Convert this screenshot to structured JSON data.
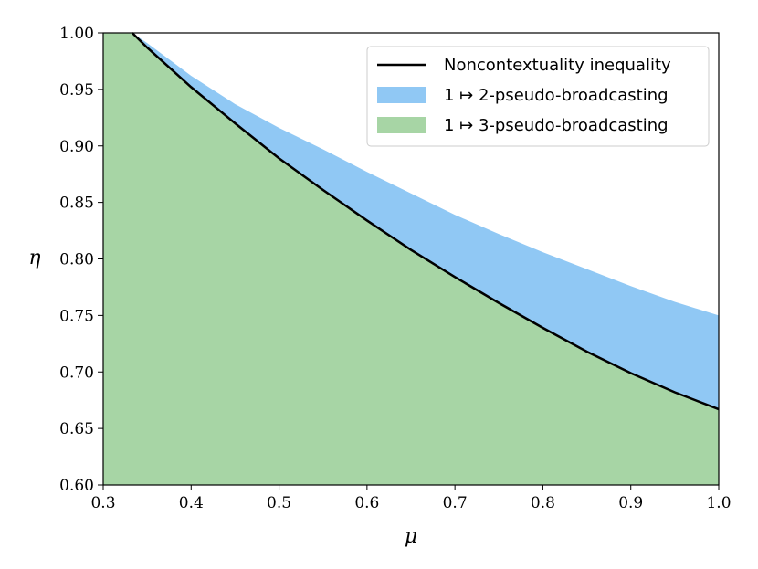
{
  "chart_data": {
    "type": "area",
    "title": "",
    "xlabel": "μ",
    "ylabel": "η",
    "xlim": [
      0.3,
      1.0
    ],
    "ylim": [
      0.6,
      1.0
    ],
    "xticks": [
      0.3,
      0.4,
      0.5,
      0.6,
      0.7,
      0.8,
      0.9,
      1.0
    ],
    "yticks": [
      0.6,
      0.65,
      0.7,
      0.75,
      0.8,
      0.85,
      0.9,
      0.95,
      1.0
    ],
    "xtick_labels": [
      "0.3",
      "0.4",
      "0.5",
      "0.6",
      "0.7",
      "0.8",
      "0.9",
      "1.0"
    ],
    "ytick_labels": [
      "0.60",
      "0.65",
      "0.70",
      "0.75",
      "0.80",
      "0.85",
      "0.90",
      "0.95",
      "1.00"
    ],
    "grid": false,
    "legend_position": "top-right",
    "series": [
      {
        "name": "Noncontextuality inequality",
        "legend_label": "Noncontextuality inequality",
        "kind": "line",
        "color": "#000000",
        "x": [
          0.333,
          0.35,
          0.4,
          0.45,
          0.5,
          0.55,
          0.6,
          0.65,
          0.7,
          0.75,
          0.8,
          0.85,
          0.9,
          0.95,
          1.0
        ],
        "y": [
          1.0,
          0.987,
          0.952,
          0.92,
          0.889,
          0.861,
          0.834,
          0.808,
          0.784,
          0.761,
          0.739,
          0.718,
          0.699,
          0.682,
          0.667
        ]
      },
      {
        "name": "1 ↦ 2-pseudo-broadcasting",
        "legend_label": "1 ↦ 2-pseudo-broadcasting",
        "kind": "area",
        "color": "#90c8f4",
        "x": [
          0.333,
          0.35,
          0.4,
          0.45,
          0.5,
          0.55,
          0.6,
          0.65,
          0.7,
          0.75,
          0.8,
          0.85,
          0.9,
          0.95,
          1.0
        ],
        "y": [
          1.0,
          0.991,
          0.962,
          0.937,
          0.916,
          0.897,
          0.877,
          0.858,
          0.839,
          0.822,
          0.806,
          0.791,
          0.776,
          0.762,
          0.75
        ]
      },
      {
        "name": "1 ↦ 3-pseudo-broadcasting",
        "legend_label": "1 ↦ 3-pseudo-broadcasting",
        "kind": "area",
        "color": "#a7d5a5",
        "x": [
          0.3,
          0.333,
          0.35,
          0.4,
          0.45,
          0.5,
          0.55,
          0.6,
          0.65,
          0.7,
          0.75,
          0.8,
          0.85,
          0.9,
          0.95,
          1.0
        ],
        "y": [
          1.0,
          1.0,
          0.987,
          0.952,
          0.92,
          0.889,
          0.861,
          0.834,
          0.808,
          0.784,
          0.761,
          0.739,
          0.718,
          0.699,
          0.682,
          0.667
        ]
      }
    ]
  }
}
